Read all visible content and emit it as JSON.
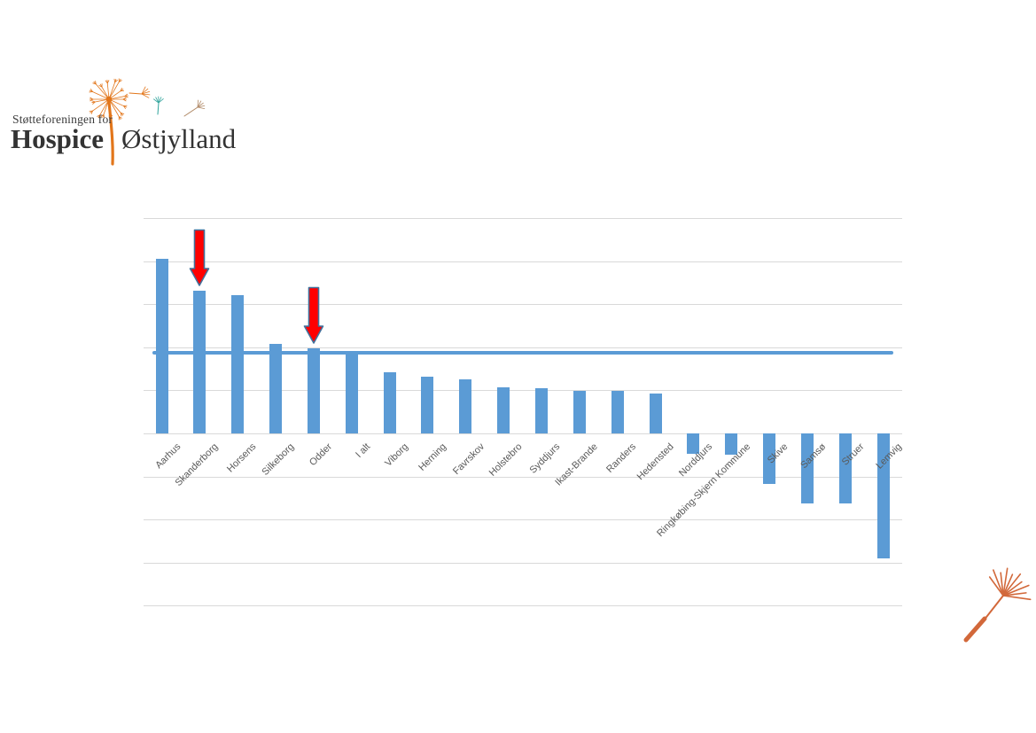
{
  "logo": {
    "tagline": "Støtteforeningen for",
    "title_bold": "Hospice",
    "title_regular": "Østjylland",
    "icons": [
      "dandelion-logo-icon",
      "floating-seed-orange-icon",
      "floating-seed-teal-icon",
      "floating-seed-tan-icon"
    ],
    "colors": {
      "text": "#3A3A3A",
      "orange": "#E2761B",
      "teal": "#2FA39B",
      "tan": "#B18A68"
    }
  },
  "chart_data": {
    "type": "bar",
    "title": "",
    "xlabel": "",
    "ylabel": "",
    "categories": [
      "Aarhus",
      "Skanderborg",
      "Horsens",
      "Silkeborg",
      "Odder",
      "I alt",
      "Viborg",
      "Herning",
      "Favrskov",
      "Holstebro",
      "Syddjurs",
      "Ikast-Brande",
      "Randers",
      "Hedensted",
      "Norddjurs",
      "Ringkøbing-Skjern Kommune",
      "Skive",
      "Samsø",
      "Struer",
      "Lemvig"
    ],
    "values": [
      4.06,
      3.32,
      3.22,
      2.08,
      1.97,
      1.89,
      1.43,
      1.32,
      1.26,
      1.08,
      1.04,
      0.98,
      0.98,
      0.93,
      -0.48,
      -0.5,
      -1.17,
      -1.62,
      -1.62,
      -2.9
    ],
    "value_note": "y-axis has no tick labels; values estimated in gridline units (baseline = 0, one gridline = 1 unit)",
    "ylim": [
      -4,
      5
    ],
    "grid": true,
    "y_tick_labels": [],
    "legend": null,
    "bar_color": "#5B9BD5",
    "gridline_color": "#D9D9D9",
    "label_color": "#595959",
    "reference_line": {
      "value": 1.87,
      "color": "#5B9BD5",
      "meaning": "horizontal line at the 'I alt' (total) level"
    },
    "annotations": [
      {
        "type": "arrow-down",
        "target": "Skanderborg",
        "fill": "#FF0000",
        "stroke": "#41719C"
      },
      {
        "type": "arrow-down",
        "target": "Odder",
        "fill": "#FF0000",
        "stroke": "#41719C"
      }
    ]
  },
  "decoration": {
    "corner_seed_icon": "dandelion-seed-icon",
    "color": "#D2683A"
  }
}
